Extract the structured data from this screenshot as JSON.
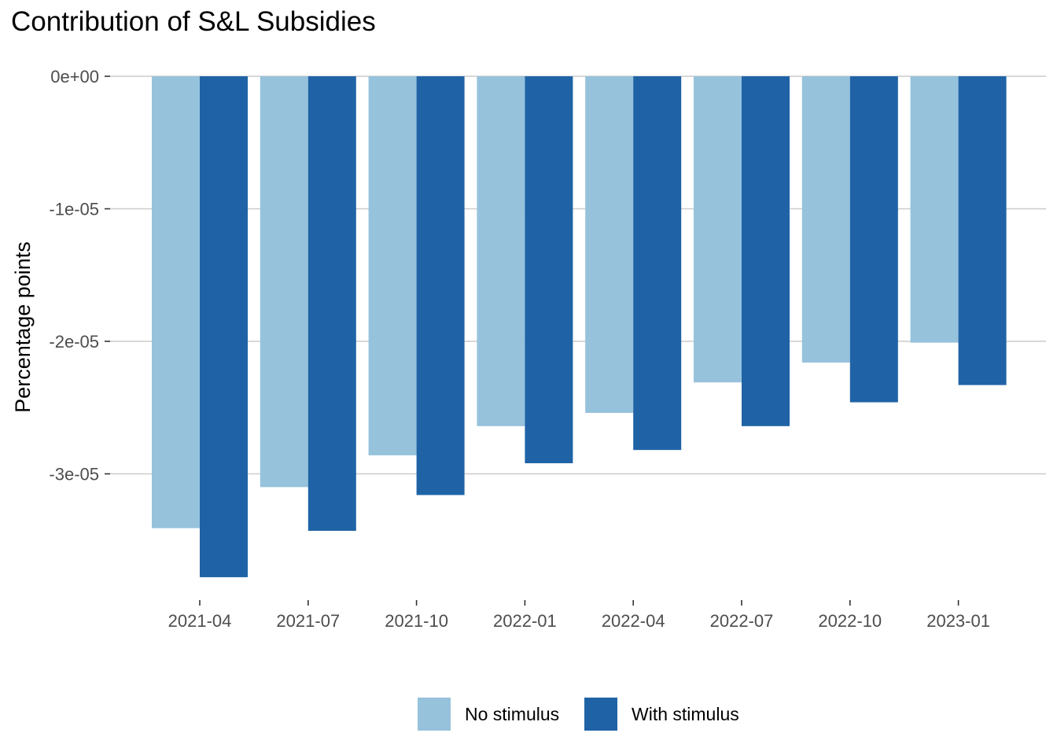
{
  "chart_data": {
    "type": "bar",
    "title": "Contribution of S&L Subsidies",
    "xlabel": "",
    "ylabel": "Percentage points",
    "categories": [
      "2021-04",
      "2021-07",
      "2021-10",
      "2022-01",
      "2022-04",
      "2022-07",
      "2022-10",
      "2023-01"
    ],
    "series": [
      {
        "name": "No stimulus",
        "color": "#96C2DC",
        "values": [
          -3.41e-05,
          -3.1e-05,
          -2.86e-05,
          -2.64e-05,
          -2.54e-05,
          -2.31e-05,
          -2.16e-05,
          -2.01e-05
        ]
      },
      {
        "name": "With stimulus",
        "color": "#1F63A6",
        "values": [
          -3.78e-05,
          -3.43e-05,
          -3.16e-05,
          -2.92e-05,
          -2.82e-05,
          -2.64e-05,
          -2.46e-05,
          -2.33e-05
        ]
      }
    ],
    "yticks": [
      0,
      -1e-05,
      -2e-05,
      -3e-05
    ],
    "ytick_labels": [
      "0e+00",
      "-1e-05",
      "-2e-05",
      "-3e-05"
    ],
    "ylim": [
      -3.85e-05,
      0
    ],
    "grid": true,
    "legend_position": "bottom"
  }
}
